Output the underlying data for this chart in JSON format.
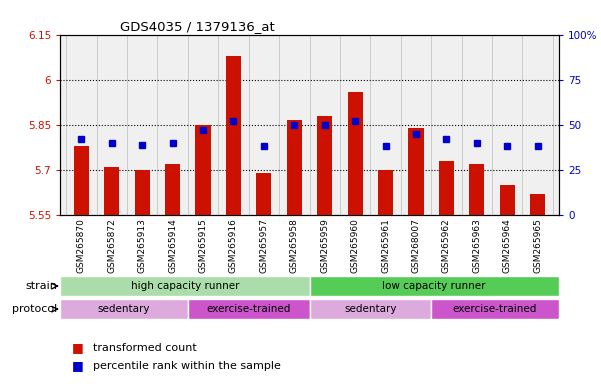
{
  "title": "GDS4035 / 1379136_at",
  "samples": [
    "GSM265870",
    "GSM265872",
    "GSM265913",
    "GSM265914",
    "GSM265915",
    "GSM265916",
    "GSM265957",
    "GSM265958",
    "GSM265959",
    "GSM265960",
    "GSM265961",
    "GSM268007",
    "GSM265962",
    "GSM265963",
    "GSM265964",
    "GSM265965"
  ],
  "bar_values": [
    5.78,
    5.71,
    5.7,
    5.72,
    5.85,
    6.08,
    5.69,
    5.865,
    5.88,
    5.96,
    5.7,
    5.84,
    5.73,
    5.72,
    5.65,
    5.62
  ],
  "percentile_values": [
    42,
    40,
    39,
    40,
    47,
    52,
    38,
    50,
    50,
    52,
    38,
    45,
    42,
    40,
    38,
    38
  ],
  "bar_bottom": 5.55,
  "ylim_left": [
    5.55,
    6.15
  ],
  "ylim_right": [
    0,
    100
  ],
  "yticks_left": [
    5.55,
    5.7,
    5.85,
    6.0,
    6.15
  ],
  "ytick_labels_left": [
    "5.55",
    "5.7",
    "5.85",
    "6",
    "6.15"
  ],
  "yticks_right": [
    0,
    25,
    50,
    75,
    100
  ],
  "ytick_labels_right": [
    "0",
    "25",
    "50",
    "75",
    "100%"
  ],
  "hlines": [
    5.7,
    5.85,
    6.0
  ],
  "bar_color": "#cc1100",
  "dot_color": "#0000cc",
  "plot_bg": "#f0f0f0",
  "strain_groups": [
    {
      "label": "high capacity runner",
      "start": 0,
      "end": 8,
      "color": "#aaddaa"
    },
    {
      "label": "low capacity runner",
      "start": 8,
      "end": 16,
      "color": "#55cc55"
    }
  ],
  "protocol_groups": [
    {
      "label": "sedentary",
      "start": 0,
      "end": 4,
      "color": "#ddaadd"
    },
    {
      "label": "exercise-trained",
      "start": 4,
      "end": 8,
      "color": "#cc55cc"
    },
    {
      "label": "sedentary",
      "start": 8,
      "end": 12,
      "color": "#ddaadd"
    },
    {
      "label": "exercise-trained",
      "start": 12,
      "end": 16,
      "color": "#cc55cc"
    }
  ],
  "legend_bar_color": "#cc1100",
  "legend_dot_color": "#0000cc",
  "legend_bar_label": "transformed count",
  "legend_dot_label": "percentile rank within the sample",
  "strain_label": "strain",
  "protocol_label": "protocol"
}
